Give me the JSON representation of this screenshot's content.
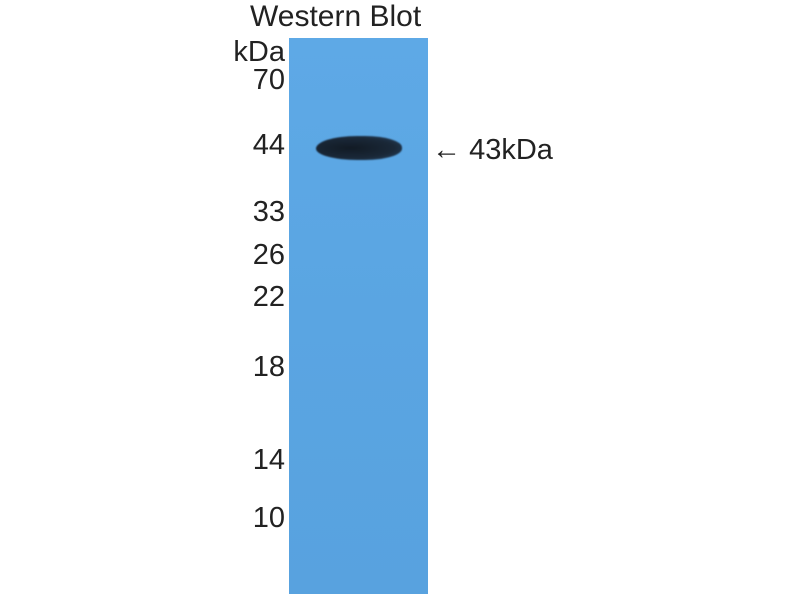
{
  "title": "Western Blot",
  "unit": "kDa",
  "markers": [
    "70",
    "44",
    "33",
    "26",
    "22",
    "18",
    "14",
    "10"
  ],
  "band_label": "43kDa",
  "arrow": "←",
  "colors": {
    "membrane": "#5aa5e2",
    "band": "#1a2838"
  }
}
